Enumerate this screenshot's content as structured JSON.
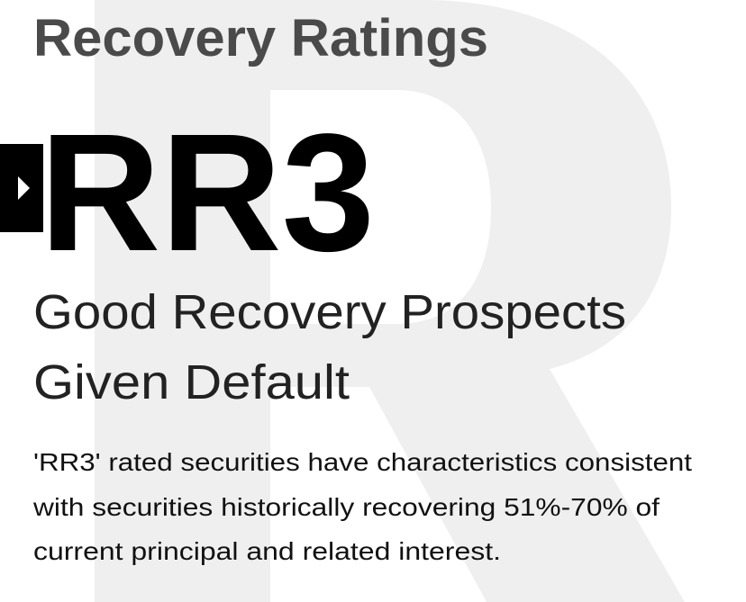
{
  "header": {
    "title": "Recovery Ratings"
  },
  "rating": {
    "code": "RR3",
    "subtitle": [
      "Good Recovery Prospects",
      "Given Default"
    ]
  },
  "description": [
    "'RR3' rated securities have characteristics consistent",
    "with securities historically recovering 51%-70% of",
    "current principal and related interest."
  ]
}
